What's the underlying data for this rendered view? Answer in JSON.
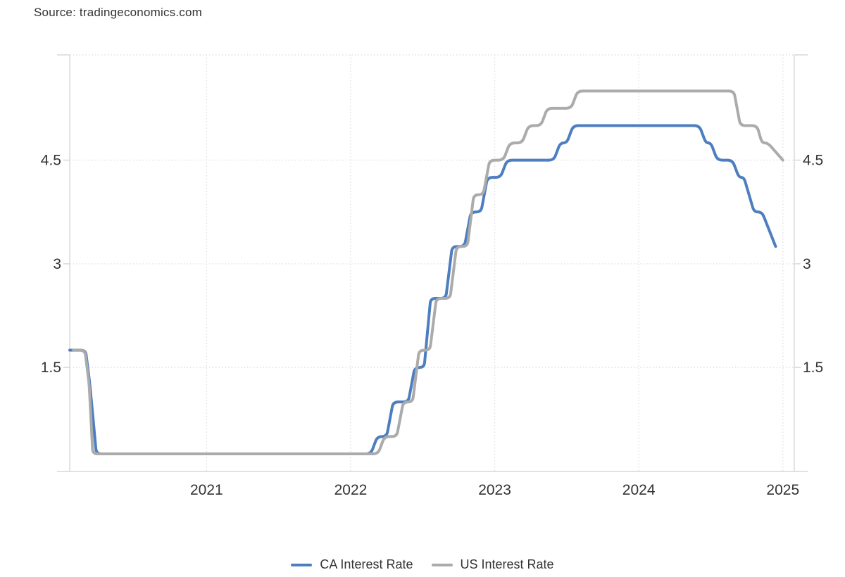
{
  "source": "Source: tradingeconomics.com",
  "chart_data": {
    "type": "line",
    "title": "",
    "grid_style": "dotted",
    "legend_position": "bottom-center",
    "x_axis": {
      "tick_values": [
        2021,
        2022,
        2023,
        2024,
        2025
      ],
      "tick_labels": [
        "2021",
        "2022",
        "2023",
        "2024",
        "2025"
      ],
      "range_start": 2020.05,
      "range_end": 2025.13
    },
    "y_axis": {
      "tick_values": [
        1.5,
        3,
        4.5
      ],
      "tick_labels": [
        "1.5",
        "3",
        "4.5"
      ],
      "min": 0,
      "max": 6.06,
      "labels_on_both_sides": true
    },
    "series": [
      {
        "name": "CA Interest Rate",
        "color": "#4d7ebf",
        "unit": "percent",
        "points": [
          [
            2020.05,
            1.75
          ],
          [
            2020.16,
            1.75
          ],
          [
            2020.19,
            1.25
          ],
          [
            2020.235,
            0.25
          ],
          [
            2022.14,
            0.25
          ],
          [
            2022.185,
            0.5
          ],
          [
            2022.25,
            0.5
          ],
          [
            2022.295,
            1.0
          ],
          [
            2022.4,
            1.0
          ],
          [
            2022.445,
            1.5
          ],
          [
            2022.51,
            1.5
          ],
          [
            2022.555,
            2.5
          ],
          [
            2022.66,
            2.5
          ],
          [
            2022.705,
            3.25
          ],
          [
            2022.79,
            3.25
          ],
          [
            2022.835,
            3.75
          ],
          [
            2022.905,
            3.75
          ],
          [
            2022.95,
            4.25
          ],
          [
            2023.04,
            4.25
          ],
          [
            2023.085,
            4.5
          ],
          [
            2023.41,
            4.5
          ],
          [
            2023.455,
            4.75
          ],
          [
            2023.5,
            4.75
          ],
          [
            2023.545,
            5.0
          ],
          [
            2024.42,
            5.0
          ],
          [
            2024.465,
            4.75
          ],
          [
            2024.5,
            4.75
          ],
          [
            2024.545,
            4.5
          ],
          [
            2024.65,
            4.5
          ],
          [
            2024.695,
            4.25
          ],
          [
            2024.73,
            4.25
          ],
          [
            2024.8,
            3.75
          ],
          [
            2024.855,
            3.75
          ],
          [
            2024.95,
            3.25
          ]
        ]
      },
      {
        "name": "US Interest Rate",
        "color": "#ababab",
        "unit": "percent",
        "points": [
          [
            2020.075,
            1.75
          ],
          [
            2020.155,
            1.75
          ],
          [
            2020.185,
            1.25
          ],
          [
            2020.21,
            0.25
          ],
          [
            2022.19,
            0.25
          ],
          [
            2022.235,
            0.5
          ],
          [
            2022.32,
            0.5
          ],
          [
            2022.365,
            1.0
          ],
          [
            2022.43,
            1.0
          ],
          [
            2022.475,
            1.75
          ],
          [
            2022.55,
            1.75
          ],
          [
            2022.595,
            2.5
          ],
          [
            2022.69,
            2.5
          ],
          [
            2022.735,
            3.25
          ],
          [
            2022.81,
            3.25
          ],
          [
            2022.855,
            4.0
          ],
          [
            2022.92,
            4.0
          ],
          [
            2022.965,
            4.5
          ],
          [
            2023.06,
            4.5
          ],
          [
            2023.105,
            4.75
          ],
          [
            2023.19,
            4.75
          ],
          [
            2023.235,
            5.0
          ],
          [
            2023.32,
            5.0
          ],
          [
            2023.365,
            5.25
          ],
          [
            2023.53,
            5.25
          ],
          [
            2023.575,
            5.5
          ],
          [
            2024.66,
            5.5
          ],
          [
            2024.705,
            5.0
          ],
          [
            2024.82,
            5.0
          ],
          [
            2024.855,
            4.75
          ],
          [
            2024.895,
            4.75
          ],
          [
            2025.0,
            4.5
          ]
        ]
      }
    ]
  },
  "colors": {
    "grid": "#e0e0e0",
    "axis": "#d9d9d9",
    "tick_text": "#333333"
  }
}
